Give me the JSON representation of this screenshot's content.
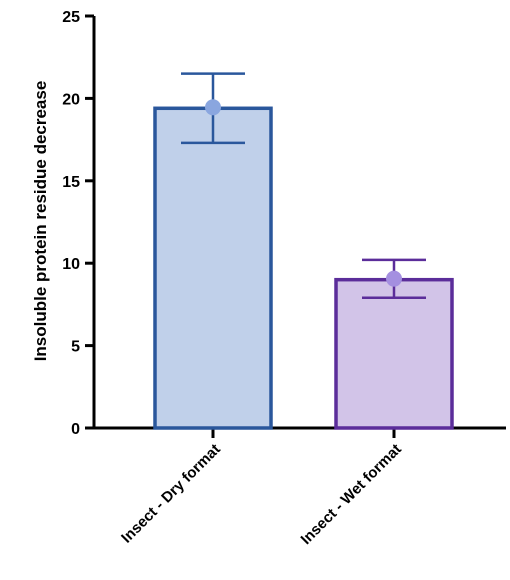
{
  "chart_data": {
    "type": "bar",
    "title": "",
    "xlabel": "",
    "ylabel": "Insoluble protein residue decrease",
    "ylim": [
      0,
      25
    ],
    "yticks": [
      0,
      5,
      10,
      15,
      20,
      25
    ],
    "grid": false,
    "categories": [
      "Insect - Dry format",
      "Insect - Wet format"
    ],
    "values": [
      19.4,
      9.0
    ],
    "error_low": [
      17.3,
      7.9
    ],
    "error_high": [
      21.5,
      10.2
    ],
    "bar_fill_colors": [
      "#c0d0ea",
      "#d2c4e8"
    ],
    "bar_stroke_colors": [
      "#2a579c",
      "#5b2d9a"
    ],
    "point_colors": [
      "#8aa6df",
      "#a48fe0"
    ]
  }
}
